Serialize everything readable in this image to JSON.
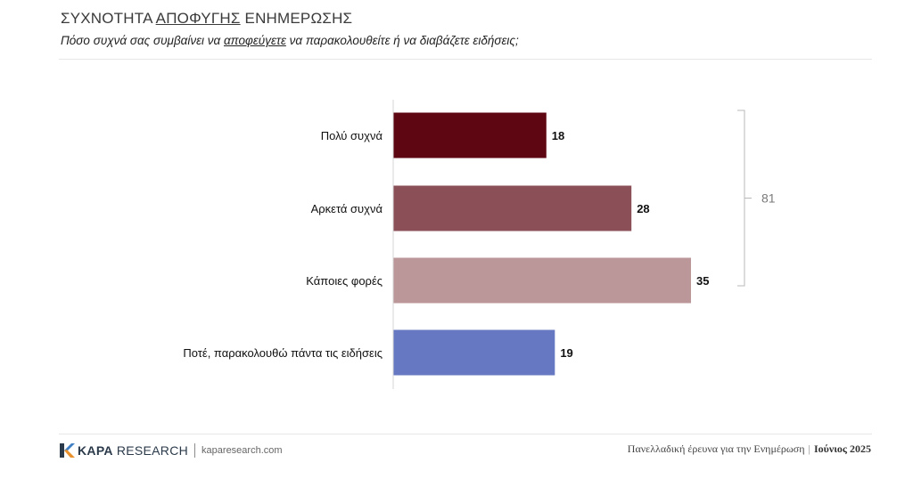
{
  "header": {
    "title_part1": "ΣΥΧΝΟΤΗΤΑ ",
    "title_part2": "ΑΠΟΦΥΓΗΣ",
    "title_part3": " ΕΝΗΜΕΡΩΣΗΣ",
    "subtitle_part1": "Πόσο συχνά σας συμβαίνει να ",
    "subtitle_part2": "αποφεύγετε",
    "subtitle_part3": " να παρακολουθείτε ή να διαβάζετε ειδήσεις;"
  },
  "chart_data": {
    "type": "bar",
    "orientation": "horizontal",
    "categories": [
      "Πολύ συχνά",
      "Αρκετά συχνά",
      "Κάποιες φορές",
      "Ποτέ, παρακολουθώ πάντα τις ειδήσεις"
    ],
    "values": [
      18,
      28,
      35,
      19
    ],
    "value_labels": [
      "18",
      "28",
      "35",
      "19"
    ],
    "colors": [
      "#5e0713",
      "#8b4f58",
      "#bc9799",
      "#6678c2"
    ],
    "xlim": [
      0,
      35
    ],
    "grid": false,
    "bracket": {
      "label": "81",
      "spans_categories": [
        0,
        1,
        2
      ]
    }
  },
  "footer": {
    "brand_bold": "KAPA",
    "brand_light": "RESEARCH",
    "website": "kaparesearch.com",
    "survey": "Πανελλαδική έρευνα για την Ενημέρωση",
    "date": "Ιούνιος 2025"
  }
}
